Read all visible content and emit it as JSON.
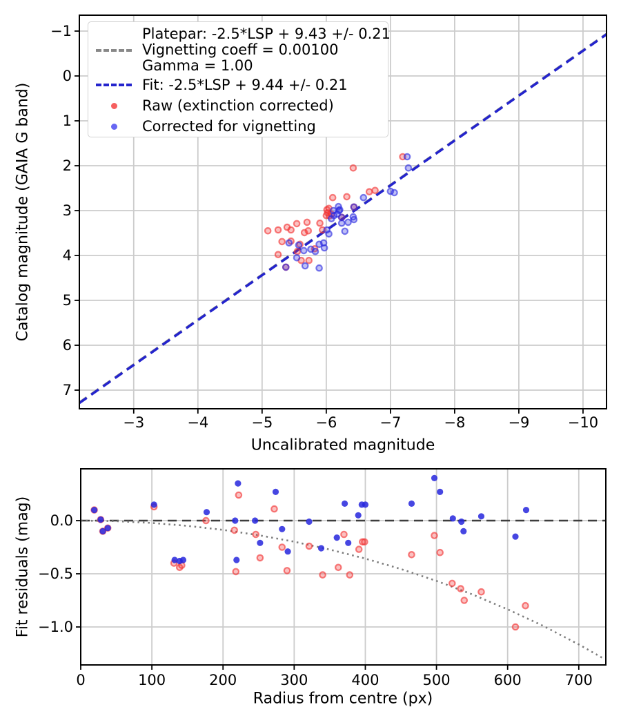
{
  "figure": {
    "background": "#ffffff"
  },
  "colors": {
    "fit_line_blue": "#2424cd",
    "platepar_gray": "#888888",
    "raw_red": "#f23232",
    "corrected_blue": "#2c2ce0",
    "gridline": "#cccccc",
    "zero_line": "#3d3d3d",
    "model_curve": "#7d7d7d"
  },
  "legend": {
    "platepar_lines": [
      "Platepar: -2.5*LSP + 9.43 +/- 0.21",
      "Vignetting coeff = 0.00100",
      "Gamma = 1.00"
    ],
    "fit_label": "Fit: -2.5*LSP + 9.44 +/- 0.21",
    "raw_label": "Raw (extinction corrected)",
    "corrected_label": "Corrected for vignetting"
  },
  "chart_data": [
    {
      "type": "scatter",
      "title": "",
      "xlabel": "Uncalibrated magnitude",
      "ylabel": "Catalog magnitude (GAIA G band)",
      "xlim": [
        -2.153,
        -10.366
      ],
      "ylim": [
        -1.354,
        7.415
      ],
      "grid": true,
      "x_ticks": {
        "values": [
          -3,
          -4,
          -5,
          -6,
          -7,
          -8,
          -9,
          -10
        ],
        "labels": [
          "−3",
          "−4",
          "−5",
          "−6",
          "−7",
          "−8",
          "−9",
          "−10"
        ]
      },
      "y_ticks": {
        "values": [
          -1,
          0,
          1,
          2,
          3,
          4,
          5,
          6,
          7
        ],
        "labels": [
          "−1",
          "0",
          "1",
          "2",
          "3",
          "4",
          "5",
          "6",
          "7"
        ]
      },
      "series": [
        {
          "name": "Platepar: -2.5*LSP + 9.43 +/- 0.21  Vignetting coeff = 0.00100  Gamma = 1.00",
          "kind": "line",
          "style": "dashed",
          "color": "#888888",
          "width": 3.5,
          "points": [
            [
              -2.153,
              7.277
            ],
            [
              -10.366,
              -0.936
            ]
          ]
        },
        {
          "name": "Fit: -2.5*LSP + 9.44 +/- 0.21",
          "kind": "line",
          "style": "dashed",
          "color": "#2424cd",
          "width": 3.5,
          "points": [
            [
              -2.153,
              7.287
            ],
            [
              -10.366,
              -0.926
            ]
          ]
        },
        {
          "name": "Raw (extinction corrected)",
          "kind": "scatter",
          "marker": "ring",
          "color": "#f23232",
          "r": 4.2,
          "points": [
            [
              -5.09,
              3.45
            ],
            [
              -5.25,
              3.43
            ],
            [
              -5.39,
              3.37
            ],
            [
              -5.45,
              3.43
            ],
            [
              -5.54,
              3.29
            ],
            [
              -5.31,
              3.69
            ],
            [
              -5.45,
              3.68
            ],
            [
              -5.25,
              3.98
            ],
            [
              -5.7,
              3.26
            ],
            [
              -5.66,
              3.49
            ],
            [
              -5.72,
              3.45
            ],
            [
              -5.59,
              3.75
            ],
            [
              -5.55,
              3.91
            ],
            [
              -5.61,
              4.11
            ],
            [
              -5.73,
              4.11
            ],
            [
              -5.9,
              3.28
            ],
            [
              -5.94,
              3.43
            ],
            [
              -5.82,
              3.85
            ],
            [
              -6.01,
              2.98
            ],
            [
              -6.04,
              2.95
            ],
            [
              -6.02,
              3.05
            ],
            [
              -6.08,
              3.08
            ],
            [
              -6.0,
              3.11
            ],
            [
              -6.05,
              3.12
            ],
            [
              -6.1,
              2.71
            ],
            [
              -6.32,
              2.69
            ],
            [
              -6.42,
              2.05
            ],
            [
              -6.67,
              2.58
            ],
            [
              -6.76,
              2.55
            ],
            [
              -7.19,
              1.8
            ],
            [
              -5.37,
              4.26
            ],
            [
              -6.24,
              3.15
            ],
            [
              -6.43,
              2.92
            ]
          ]
        },
        {
          "name": "Corrected for vignetting",
          "kind": "scatter",
          "marker": "ring",
          "color": "#2c2ce0",
          "r": 4.2,
          "points": [
            [
              -5.42,
              3.72
            ],
            [
              -5.57,
              3.77
            ],
            [
              -5.65,
              3.89
            ],
            [
              -5.76,
              3.86
            ],
            [
              -5.83,
              3.91
            ],
            [
              -5.89,
              3.75
            ],
            [
              -5.96,
              3.72
            ],
            [
              -6.01,
              3.43
            ],
            [
              -6.04,
              3.52
            ],
            [
              -6.08,
              3.18
            ],
            [
              -6.12,
              3.11
            ],
            [
              -6.17,
              3.08
            ],
            [
              -6.2,
              3.0
            ],
            [
              -6.24,
              3.28
            ],
            [
              -6.29,
              3.46
            ],
            [
              -6.34,
              3.26
            ],
            [
              -6.43,
              3.2
            ],
            [
              -6.19,
              2.91
            ],
            [
              -6.11,
              3.0
            ],
            [
              -6.21,
              2.98
            ],
            [
              -6.42,
              3.14
            ],
            [
              -6.58,
              2.71
            ],
            [
              -7.0,
              2.57
            ],
            [
              -7.06,
              2.6
            ],
            [
              -7.26,
              1.8
            ],
            [
              -7.28,
              2.05
            ],
            [
              -5.37,
              4.26
            ],
            [
              -6.24,
              3.15
            ],
            [
              -6.43,
              2.92
            ],
            [
              -5.54,
              4.05
            ],
            [
              -5.67,
              4.23
            ],
            [
              -5.89,
              4.28
            ],
            [
              -5.97,
              3.83
            ]
          ]
        }
      ]
    },
    {
      "type": "scatter",
      "title": "",
      "xlabel": "Radius from centre (px)",
      "ylabel": "Fit residuals (mag)",
      "xlim": [
        0,
        738
      ],
      "ylim": [
        0.487,
        -1.357
      ],
      "grid": true,
      "x_ticks": {
        "values": [
          0,
          100,
          200,
          300,
          400,
          500,
          600,
          700
        ],
        "labels": [
          "0",
          "100",
          "200",
          "300",
          "400",
          "500",
          "600",
          "700"
        ]
      },
      "y_ticks": {
        "values": [
          0,
          -0.5,
          -1
        ],
        "labels": [
          "0.0",
          "−0.5",
          "−1.0"
        ]
      },
      "series": [
        {
          "name": "zero-residual-line",
          "kind": "line",
          "style": "dashed",
          "color": "#3d3d3d",
          "width": 2.6,
          "points": [
            [
              0,
              0
            ],
            [
              738,
              0
            ]
          ]
        },
        {
          "name": "vignetting-model-curve",
          "kind": "line",
          "style": "dotted",
          "color": "#7d7d7d",
          "width": 2.6,
          "points": [
            [
              0,
              0
            ],
            [
              50,
              -0.005
            ],
            [
              100,
              -0.022
            ],
            [
              150,
              -0.049
            ],
            [
              200,
              -0.087
            ],
            [
              250,
              -0.137
            ],
            [
              300,
              -0.198
            ],
            [
              350,
              -0.272
            ],
            [
              400,
              -0.357
            ],
            [
              450,
              -0.455
            ],
            [
              500,
              -0.567
            ],
            [
              550,
              -0.693
            ],
            [
              600,
              -0.834
            ],
            [
              650,
              -0.99
            ],
            [
              700,
              -1.164
            ],
            [
              735,
              -1.297
            ]
          ]
        },
        {
          "name": "Raw (extinction corrected)",
          "kind": "scatter",
          "marker": "ring",
          "color": "#f23232",
          "r": 4.2,
          "points": [
            [
              19,
              0.1
            ],
            [
              28,
              0.01
            ],
            [
              31,
              -0.1
            ],
            [
              38,
              -0.07
            ],
            [
              103,
              0.13
            ],
            [
              131,
              -0.4
            ],
            [
              139,
              -0.44
            ],
            [
              142,
              -0.42
            ],
            [
              176,
              0.0
            ],
            [
              216,
              -0.09
            ],
            [
              218,
              -0.48
            ],
            [
              222,
              0.24
            ],
            [
              246,
              -0.13
            ],
            [
              252,
              -0.35
            ],
            [
              272,
              0.11
            ],
            [
              283,
              -0.25
            ],
            [
              290,
              -0.47
            ],
            [
              321,
              -0.24
            ],
            [
              340,
              -0.51
            ],
            [
              362,
              -0.44
            ],
            [
              370,
              -0.13
            ],
            [
              378,
              -0.51
            ],
            [
              391,
              -0.27
            ],
            [
              396,
              -0.2
            ],
            [
              399,
              -0.2
            ],
            [
              465,
              -0.32
            ],
            [
              497,
              -0.14
            ],
            [
              505,
              -0.3
            ],
            [
              522,
              -0.59
            ],
            [
              534,
              -0.64
            ],
            [
              539,
              -0.75
            ],
            [
              563,
              -0.67
            ],
            [
              611,
              -1.0
            ],
            [
              625,
              -0.8
            ]
          ]
        },
        {
          "name": "Corrected for vignetting",
          "kind": "scatter",
          "marker": "solid",
          "color": "#2626dd",
          "r": 4.6,
          "points": [
            [
              19,
              0.1
            ],
            [
              28,
              0.01
            ],
            [
              31,
              -0.1
            ],
            [
              38,
              -0.07
            ],
            [
              103,
              0.15
            ],
            [
              132,
              -0.37
            ],
            [
              139,
              -0.38
            ],
            [
              144,
              -0.37
            ],
            [
              177,
              0.08
            ],
            [
              217,
              0.0
            ],
            [
              219,
              -0.37
            ],
            [
              221,
              0.35
            ],
            [
              245,
              0.0
            ],
            [
              252,
              -0.21
            ],
            [
              274,
              0.27
            ],
            [
              283,
              -0.08
            ],
            [
              291,
              -0.29
            ],
            [
              321,
              -0.01
            ],
            [
              338,
              -0.26
            ],
            [
              360,
              -0.16
            ],
            [
              371,
              0.16
            ],
            [
              376,
              -0.21
            ],
            [
              390,
              0.05
            ],
            [
              395,
              0.15
            ],
            [
              400,
              0.15
            ],
            [
              465,
              0.16
            ],
            [
              497,
              0.4
            ],
            [
              505,
              0.27
            ],
            [
              523,
              0.02
            ],
            [
              535,
              -0.01
            ],
            [
              538,
              -0.1
            ],
            [
              563,
              0.04
            ],
            [
              611,
              -0.15
            ],
            [
              626,
              0.1
            ]
          ]
        }
      ]
    }
  ]
}
